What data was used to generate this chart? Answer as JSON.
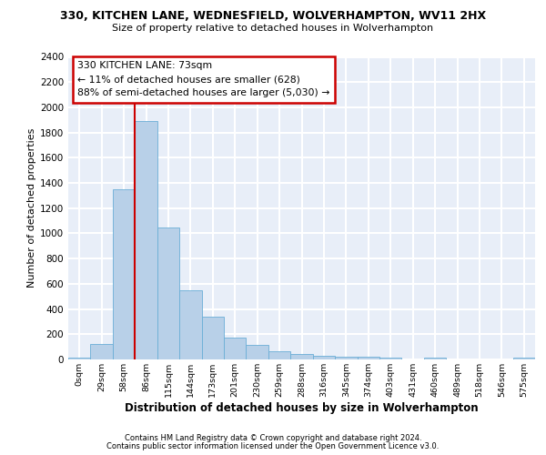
{
  "title1": "330, KITCHEN LANE, WEDNESFIELD, WOLVERHAMPTON, WV11 2HX",
  "title2": "Size of property relative to detached houses in Wolverhampton",
  "xlabel": "Distribution of detached houses by size in Wolverhampton",
  "ylabel": "Number of detached properties",
  "footer1": "Contains HM Land Registry data © Crown copyright and database right 2024.",
  "footer2": "Contains public sector information licensed under the Open Government Licence v3.0.",
  "annotation_line1": "330 KITCHEN LANE: 73sqm",
  "annotation_line2": "← 11% of detached houses are smaller (628)",
  "annotation_line3": "88% of semi-detached houses are larger (5,030) →",
  "bar_color": "#b8d0e8",
  "bar_edge_color": "#6aaed6",
  "line_color": "#cc0000",
  "bg_color": "#e8eef8",
  "grid_color": "#ffffff",
  "categories": [
    "0sqm",
    "29sqm",
    "58sqm",
    "86sqm",
    "115sqm",
    "144sqm",
    "173sqm",
    "201sqm",
    "230sqm",
    "259sqm",
    "288sqm",
    "316sqm",
    "345sqm",
    "374sqm",
    "403sqm",
    "431sqm",
    "460sqm",
    "489sqm",
    "518sqm",
    "546sqm",
    "575sqm"
  ],
  "values": [
    15,
    125,
    1350,
    1890,
    1045,
    545,
    340,
    170,
    115,
    65,
    40,
    30,
    25,
    20,
    15,
    0,
    15,
    0,
    0,
    0,
    15
  ],
  "bin_width": 29,
  "property_sqm": 73,
  "property_line_x": 2.5,
  "ylim": [
    0,
    2400
  ],
  "yticks": [
    0,
    200,
    400,
    600,
    800,
    1000,
    1200,
    1400,
    1600,
    1800,
    2000,
    2200,
    2400
  ]
}
